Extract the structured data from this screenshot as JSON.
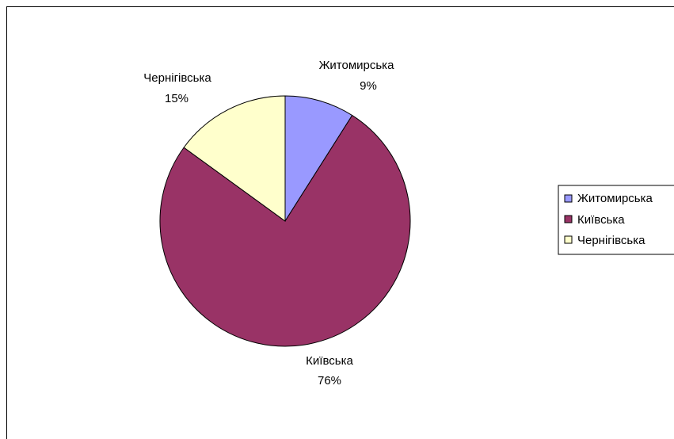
{
  "chart_data": {
    "type": "pie",
    "title": "",
    "categories": [
      "Житомирська",
      "Київська",
      "Чернігівська"
    ],
    "values": [
      9,
      76,
      15
    ],
    "unit": "%",
    "colors": [
      "#9999ff",
      "#993366",
      "#ffffcc"
    ],
    "data_labels": [
      {
        "name": "Житомирська",
        "value": "9%"
      },
      {
        "name": "Київська",
        "value": "76%"
      },
      {
        "name": "Чернігівська",
        "value": "15%"
      }
    ],
    "legend": {
      "position": "right",
      "items": [
        "Житомирська",
        "Київська",
        "Чернігівська"
      ]
    }
  }
}
